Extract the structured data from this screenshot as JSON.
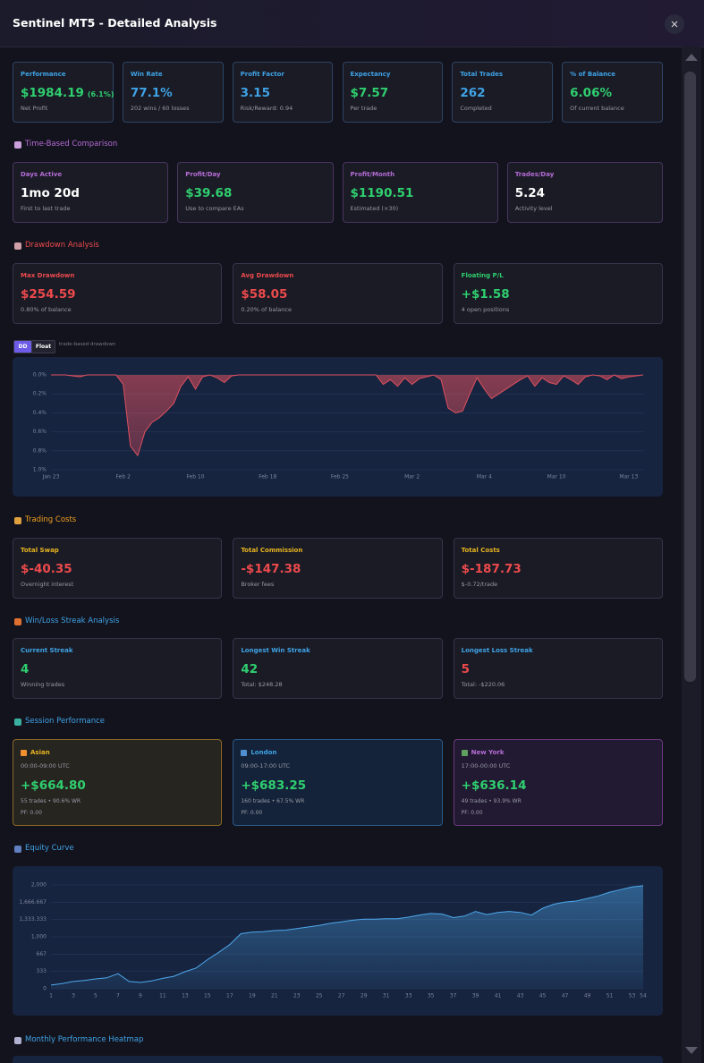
{
  "header": {
    "title": "Sentinel MT5 - Detailed Analysis"
  },
  "summary": [
    {
      "label": "Performance",
      "value": "$1984.19",
      "extra": "(6.1%)",
      "sub": "Net Profit"
    },
    {
      "label": "Win Rate",
      "value": "77.1%",
      "sub": "202 wins / 60 losses"
    },
    {
      "label": "Profit Factor",
      "value": "3.15",
      "sub": "Risk/Reward: 0.94"
    },
    {
      "label": "Expectancy",
      "value": "$7.57",
      "sub": "Per trade"
    },
    {
      "label": "Total Trades",
      "value": "262",
      "sub": "Completed"
    },
    {
      "label": "% of Balance",
      "value": "6.06%",
      "sub": "Of current balance"
    }
  ],
  "time_based": {
    "title": "Time-Based Comparison",
    "cards": [
      {
        "label": "Days Active",
        "value": "1mo 20d",
        "sub": "First to last trade"
      },
      {
        "label": "Profit/Day",
        "value": "$39.68",
        "sub": "Use to compare EAs"
      },
      {
        "label": "Profit/Month",
        "value": "$1190.51",
        "sub": "Estimated (×30)"
      },
      {
        "label": "Trades/Day",
        "value": "5.24",
        "sub": "Activity level"
      }
    ]
  },
  "drawdown": {
    "title": "Drawdown Analysis",
    "cards": [
      {
        "label": "Max Drawdown",
        "value": "$254.59",
        "sub": "0.80% of balance"
      },
      {
        "label": "Avg Drawdown",
        "value": "$58.05",
        "sub": "0.20% of balance"
      },
      {
        "label": "Floating P/L",
        "value": "+$1.58",
        "sub": "4 open positions"
      }
    ],
    "toggle": [
      "DD",
      "Float"
    ],
    "toggle_note": "trade-based drawdown"
  },
  "trading_costs": {
    "title": "Trading Costs",
    "cards": [
      {
        "label": "Total Swap",
        "value": "$-40.35",
        "sub": "Overnight interest"
      },
      {
        "label": "Total Commission",
        "value": "-$147.38",
        "sub": "Broker fees"
      },
      {
        "label": "Total Costs",
        "value": "$-187.73",
        "sub": "$-0.72/trade"
      }
    ]
  },
  "streaks": {
    "title": "Win/Loss Streak Analysis",
    "cards": [
      {
        "label": "Current Streak",
        "value": "4",
        "sub": "Winning trades"
      },
      {
        "label": "Longest Win Streak",
        "value": "42",
        "sub": "Total: $248.28"
      },
      {
        "label": "Longest Loss Streak",
        "value": "5",
        "sub": "Total: -$220.06"
      }
    ]
  },
  "sessions": {
    "title": "Session Performance",
    "cards": [
      {
        "name": "Asian",
        "hours": "00:00-09:00 UTC",
        "value": "+$664.80",
        "trades": "55 trades • 90.6% WR",
        "pf": "PF: 0.00"
      },
      {
        "name": "London",
        "hours": "09:00-17:00 UTC",
        "value": "+$683.25",
        "trades": "160 trades • 67.5% WR",
        "pf": "PF: 0.00"
      },
      {
        "name": "New York",
        "hours": "17:00-00:00 UTC",
        "value": "+$636.14",
        "trades": "49 trades • 93.9% WR",
        "pf": "PF: 0.00"
      }
    ]
  },
  "equity": {
    "title": "Equity Curve"
  },
  "heatmap": {
    "title": "Monthly Performance Heatmap"
  },
  "chart_data": [
    {
      "type": "area",
      "inverted": true,
      "color": "#e0505e",
      "grid": true,
      "categories": [
        "Jan 23",
        null,
        null,
        null,
        null,
        null,
        null,
        null,
        null,
        null,
        "Feb 2",
        null,
        null,
        null,
        null,
        null,
        null,
        null,
        null,
        null,
        "Feb 10",
        null,
        null,
        null,
        null,
        null,
        null,
        null,
        null,
        null,
        "Feb 18",
        null,
        null,
        null,
        null,
        null,
        null,
        null,
        null,
        null,
        "Feb 25",
        null,
        null,
        null,
        null,
        null,
        null,
        null,
        null,
        null,
        "Mar 2",
        null,
        null,
        null,
        null,
        null,
        null,
        null,
        null,
        null,
        "Mar 4",
        null,
        null,
        null,
        null,
        null,
        null,
        null,
        null,
        null,
        "Mar 10",
        null,
        null,
        null,
        null,
        null,
        null,
        null,
        null,
        null,
        "Mar 13",
        null,
        null
      ],
      "values": [
        0,
        0,
        0,
        0.01,
        0.02,
        0,
        0,
        0,
        0,
        0,
        0.1,
        0.75,
        0.85,
        0.6,
        0.5,
        0.45,
        0.38,
        0.3,
        0.12,
        0.02,
        0.15,
        0.02,
        0,
        0.03,
        0.08,
        0.01,
        0,
        0,
        0,
        0,
        0,
        0,
        0,
        0,
        0,
        0,
        0,
        0,
        0,
        0,
        0,
        0,
        0,
        0,
        0,
        0,
        0.1,
        0.05,
        0.12,
        0.03,
        0.1,
        0.04,
        0.02,
        0,
        0.05,
        0.35,
        0.4,
        0.38,
        0.2,
        0.03,
        0.15,
        0.25,
        0.2,
        0.15,
        0.1,
        0.05,
        0.01,
        0.12,
        0.03,
        0.08,
        0.1,
        0.01,
        0.05,
        0.1,
        0.02,
        0,
        0.01,
        0.05,
        0,
        0.04,
        0.02,
        0.01,
        0
      ],
      "ylim": [
        0,
        1
      ],
      "yticks": [
        {
          "value": 0,
          "label": "0.0%"
        },
        {
          "value": 0.2,
          "label": "0.2%"
        },
        {
          "value": 0.4,
          "label": "0.4%"
        },
        {
          "value": 0.6,
          "label": "0.6%"
        },
        {
          "value": 0.8,
          "label": "0.8%"
        },
        {
          "value": 1,
          "label": "1.0%"
        }
      ]
    },
    {
      "type": "area",
      "color": "#4ea8ec",
      "grid": true,
      "x": [
        1,
        2,
        3,
        4,
        5,
        6,
        7,
        8,
        9,
        10,
        11,
        12,
        13,
        14,
        15,
        16,
        17,
        18,
        19,
        20,
        21,
        22,
        23,
        24,
        25,
        26,
        27,
        28,
        29,
        30,
        31,
        32,
        33,
        34,
        35,
        36,
        37,
        38,
        39,
        40,
        41,
        42,
        43,
        44,
        45,
        46,
        47,
        48,
        49,
        50,
        51,
        52,
        53,
        54
      ],
      "values": [
        70,
        100,
        140,
        160,
        190,
        210,
        290,
        140,
        120,
        150,
        200,
        240,
        330,
        400,
        560,
        700,
        850,
        1060,
        1090,
        1100,
        1120,
        1130,
        1160,
        1190,
        1220,
        1260,
        1290,
        1320,
        1340,
        1340,
        1350,
        1350,
        1380,
        1420,
        1450,
        1440,
        1370,
        1400,
        1490,
        1430,
        1470,
        1490,
        1470,
        1420,
        1550,
        1630,
        1670,
        1690,
        1740,
        1790,
        1860,
        1910,
        1960,
        1984
      ],
      "xlim": [
        1,
        54
      ],
      "xticks": [
        1,
        3,
        5,
        7,
        9,
        11,
        13,
        15,
        17,
        19,
        21,
        23,
        25,
        27,
        29,
        31,
        33,
        35,
        37,
        39,
        41,
        43,
        45,
        47,
        49,
        51,
        53,
        54
      ],
      "ylim": [
        0,
        2000
      ],
      "yticks": [
        0,
        {
          "value": 333.333,
          "label": "333"
        },
        {
          "value": 666.667,
          "label": "667"
        },
        {
          "value": 1000,
          "label": "1,000"
        },
        {
          "value": 1333.333,
          "label": "1,333.333"
        },
        {
          "value": 1666.667,
          "label": "1,666.667"
        },
        {
          "value": 2000,
          "label": "2,000"
        }
      ]
    }
  ]
}
